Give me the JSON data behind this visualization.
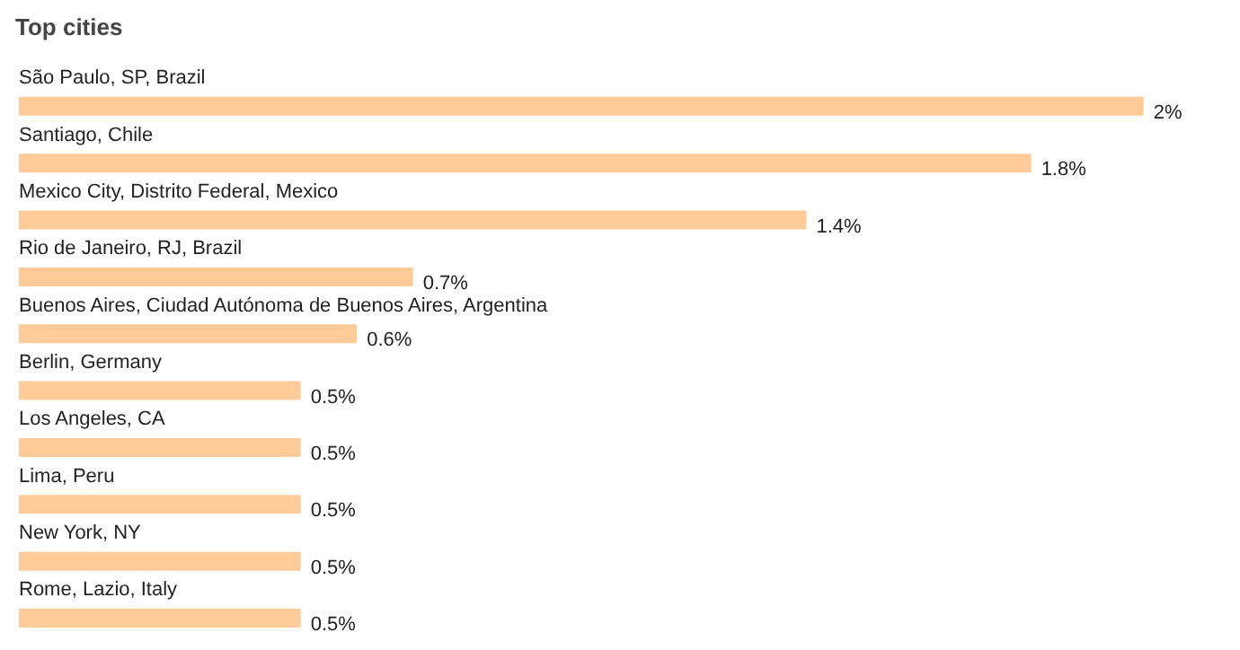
{
  "chart_data": {
    "type": "bar",
    "orientation": "horizontal",
    "title": "Top cities",
    "categories": [
      "São Paulo, SP, Brazil",
      "Santiago, Chile",
      "Mexico City, Distrito Federal, Mexico",
      "Rio de Janeiro, RJ, Brazil",
      "Buenos Aires, Ciudad Autónoma de Buenos Aires, Argentina",
      "Berlin, Germany",
      "Los Angeles, CA",
      "Lima, Peru",
      "New York, NY",
      "Rome, Lazio, Italy"
    ],
    "values": [
      2,
      1.8,
      1.4,
      0.7,
      0.6,
      0.5,
      0.5,
      0.5,
      0.5,
      0.5
    ],
    "value_labels": [
      "2%",
      "1.8%",
      "1.4%",
      "0.7%",
      "0.6%",
      "0.5%",
      "0.5%",
      "0.5%",
      "0.5%",
      "0.5%"
    ],
    "color": "#ffcc99"
  }
}
